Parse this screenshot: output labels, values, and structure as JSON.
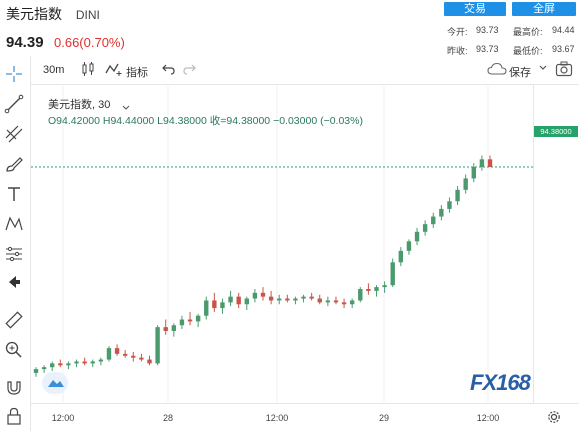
{
  "header": {
    "title": "美元指数",
    "code": "DINI",
    "price": "94.39",
    "change": "0.66(0.70%)",
    "buttons": {
      "trade": "交易",
      "fullscreen": "全屏"
    },
    "stats": {
      "open_label": "今开:",
      "open_value": "93.73",
      "high_label": "最高价:",
      "high_value": "94.44",
      "prev_label": "昨收:",
      "prev_value": "93.73",
      "low_label": "最低价:",
      "low_value": "93.67"
    }
  },
  "toolbar": {
    "interval": "30m",
    "indicators_label": "指标",
    "save_label": "保存"
  },
  "legend": {
    "symbol_line": "美元指数, 30",
    "ohlc_line": "O94.42000  H94.44000  L94.38000  收=94.38000  −0.03000 (−0.03%)"
  },
  "last_price_tag": "94.38000",
  "watermark": "FX168",
  "colors": {
    "up": "#4a9a6e",
    "down": "#c9544a",
    "accent": "#1e90e6",
    "tag": "#26a36a"
  },
  "chart_data": {
    "type": "candlestick",
    "symbol": "美元指数",
    "interval": "30",
    "x_ticks": [
      "12:00",
      "28",
      "12:00",
      "29",
      "12:00"
    ],
    "ylim": [
      93.2,
      94.6
    ],
    "last_price": 94.38,
    "candles": [
      [
        93.3,
        93.33,
        93.28,
        93.32
      ],
      [
        93.32,
        93.34,
        93.3,
        93.33
      ],
      [
        93.33,
        93.36,
        93.31,
        93.35
      ],
      [
        93.35,
        93.37,
        93.33,
        93.34
      ],
      [
        93.34,
        93.36,
        93.32,
        93.35
      ],
      [
        93.35,
        93.37,
        93.33,
        93.36
      ],
      [
        93.36,
        93.38,
        93.34,
        93.35
      ],
      [
        93.35,
        93.37,
        93.33,
        93.36
      ],
      [
        93.36,
        93.38,
        93.34,
        93.37
      ],
      [
        93.37,
        93.44,
        93.36,
        93.43
      ],
      [
        93.43,
        93.45,
        93.39,
        93.4
      ],
      [
        93.4,
        93.42,
        93.38,
        93.39
      ],
      [
        93.39,
        93.41,
        93.36,
        93.38
      ],
      [
        93.38,
        93.4,
        93.36,
        93.37
      ],
      [
        93.37,
        93.39,
        93.34,
        93.35
      ],
      [
        93.35,
        93.55,
        93.34,
        93.54
      ],
      [
        93.54,
        93.58,
        93.5,
        93.52
      ],
      [
        93.52,
        93.56,
        93.49,
        93.55
      ],
      [
        93.55,
        93.6,
        93.53,
        93.58
      ],
      [
        93.58,
        93.62,
        93.55,
        93.57
      ],
      [
        93.57,
        93.61,
        93.54,
        93.6
      ],
      [
        93.6,
        93.7,
        93.58,
        93.68
      ],
      [
        93.68,
        93.72,
        93.62,
        93.64
      ],
      [
        93.64,
        93.69,
        93.61,
        93.67
      ],
      [
        93.67,
        93.73,
        93.65,
        93.7
      ],
      [
        93.7,
        93.72,
        93.64,
        93.66
      ],
      [
        93.66,
        93.7,
        93.63,
        93.69
      ],
      [
        93.69,
        93.74,
        93.67,
        93.72
      ],
      [
        93.72,
        93.75,
        93.68,
        93.7
      ],
      [
        93.7,
        93.73,
        93.66,
        93.68
      ],
      [
        93.68,
        93.71,
        93.66,
        93.69
      ],
      [
        93.69,
        93.71,
        93.67,
        93.68
      ],
      [
        93.68,
        93.7,
        93.66,
        93.69
      ],
      [
        93.69,
        93.71,
        93.67,
        93.7
      ],
      [
        93.7,
        93.72,
        93.68,
        93.69
      ],
      [
        93.69,
        93.71,
        93.66,
        93.67
      ],
      [
        93.67,
        93.7,
        93.65,
        93.68
      ],
      [
        93.68,
        93.7,
        93.66,
        93.67
      ],
      [
        93.67,
        93.69,
        93.64,
        93.66
      ],
      [
        93.66,
        93.69,
        93.64,
        93.68
      ],
      [
        93.68,
        93.75,
        93.67,
        93.74
      ],
      [
        93.74,
        93.77,
        93.71,
        93.73
      ],
      [
        93.73,
        93.76,
        93.7,
        93.75
      ],
      [
        93.75,
        93.78,
        93.72,
        93.76
      ],
      [
        93.76,
        93.9,
        93.75,
        93.88
      ],
      [
        93.88,
        93.96,
        93.86,
        93.94
      ],
      [
        93.94,
        94.0,
        93.92,
        93.99
      ],
      [
        93.99,
        94.06,
        93.97,
        94.04
      ],
      [
        94.04,
        94.1,
        94.02,
        94.08
      ],
      [
        94.08,
        94.14,
        94.06,
        94.12
      ],
      [
        94.12,
        94.18,
        94.1,
        94.16
      ],
      [
        94.16,
        94.22,
        94.14,
        94.2
      ],
      [
        94.2,
        94.28,
        94.18,
        94.26
      ],
      [
        94.26,
        94.34,
        94.24,
        94.32
      ],
      [
        94.32,
        94.4,
        94.3,
        94.38
      ],
      [
        94.38,
        94.44,
        94.36,
        94.42
      ],
      [
        94.42,
        94.44,
        94.38,
        94.38
      ]
    ]
  }
}
